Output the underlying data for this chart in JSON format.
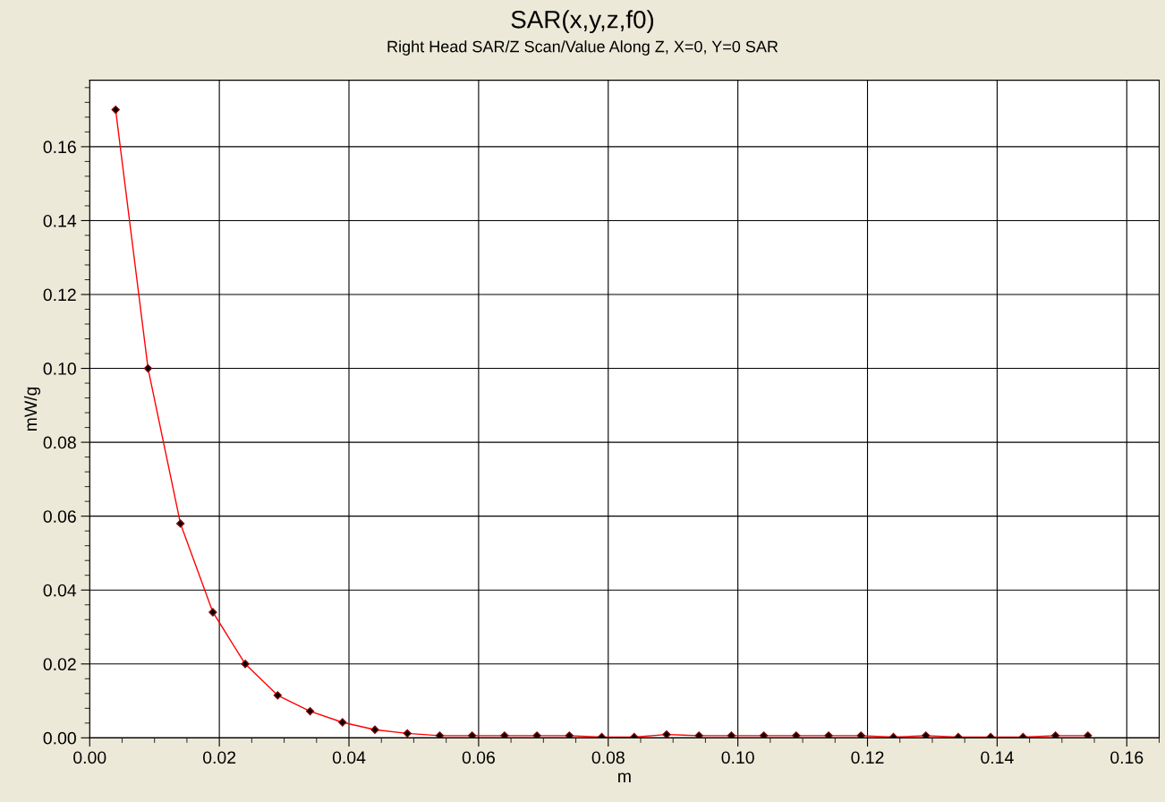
{
  "chart_data": {
    "type": "line",
    "title": "SAR(x,y,z,f0)",
    "subtitle": "Right Head SAR/Z Scan/Value Along Z, X=0, Y=0 SAR",
    "xlabel": "m",
    "ylabel": "mW/g",
    "x": [
      0.004,
      0.009,
      0.014,
      0.019,
      0.024,
      0.029,
      0.034,
      0.039,
      0.044,
      0.049,
      0.054,
      0.059,
      0.064,
      0.069,
      0.074,
      0.079,
      0.084,
      0.089,
      0.094,
      0.099,
      0.104,
      0.109,
      0.114,
      0.119,
      0.124,
      0.129,
      0.134,
      0.139,
      0.144,
      0.149,
      0.154
    ],
    "series": [
      {
        "color": "#ff0000",
        "values": [
          0.17,
          0.1,
          0.058,
          0.034,
          0.02,
          0.0115,
          0.0072,
          0.0042,
          0.0022,
          0.0012,
          0.0006,
          0.0006,
          0.0006,
          0.0006,
          0.0006,
          0.0002,
          0.0002,
          0.0009,
          0.0006,
          0.0006,
          0.0006,
          0.0006,
          0.0006,
          0.0006,
          0.0002,
          0.0006,
          0.0002,
          0.0002,
          0.0002,
          0.0006,
          0.0006
        ]
      }
    ],
    "marker": "diamond",
    "line_style": "solid",
    "grid": true,
    "legend": false,
    "xlim": [
      0,
      0.165
    ],
    "ylim": [
      0,
      0.178
    ],
    "xticks": [
      {
        "value": 0,
        "label": "0.00"
      },
      {
        "value": 0.02,
        "label": "0.02"
      },
      {
        "value": 0.04,
        "label": "0.04"
      },
      {
        "value": 0.06,
        "label": "0.06"
      },
      {
        "value": 0.08,
        "label": "0.08"
      },
      {
        "value": 0.1,
        "label": "0.10"
      },
      {
        "value": 0.12,
        "label": "0.12"
      },
      {
        "value": 0.14,
        "label": "0.14"
      },
      {
        "value": 0.16,
        "label": "0.16"
      }
    ],
    "yticks": [
      {
        "value": 0,
        "label": "0.00"
      },
      {
        "value": 0.02,
        "label": "0.02"
      },
      {
        "value": 0.04,
        "label": "0.04"
      },
      {
        "value": 0.06,
        "label": "0.06"
      },
      {
        "value": 0.08,
        "label": "0.08"
      },
      {
        "value": 0.1,
        "label": "0.10"
      },
      {
        "value": 0.12,
        "label": "0.12"
      },
      {
        "value": 0.14,
        "label": "0.14"
      },
      {
        "value": 0.16,
        "label": "0.16"
      }
    ]
  }
}
